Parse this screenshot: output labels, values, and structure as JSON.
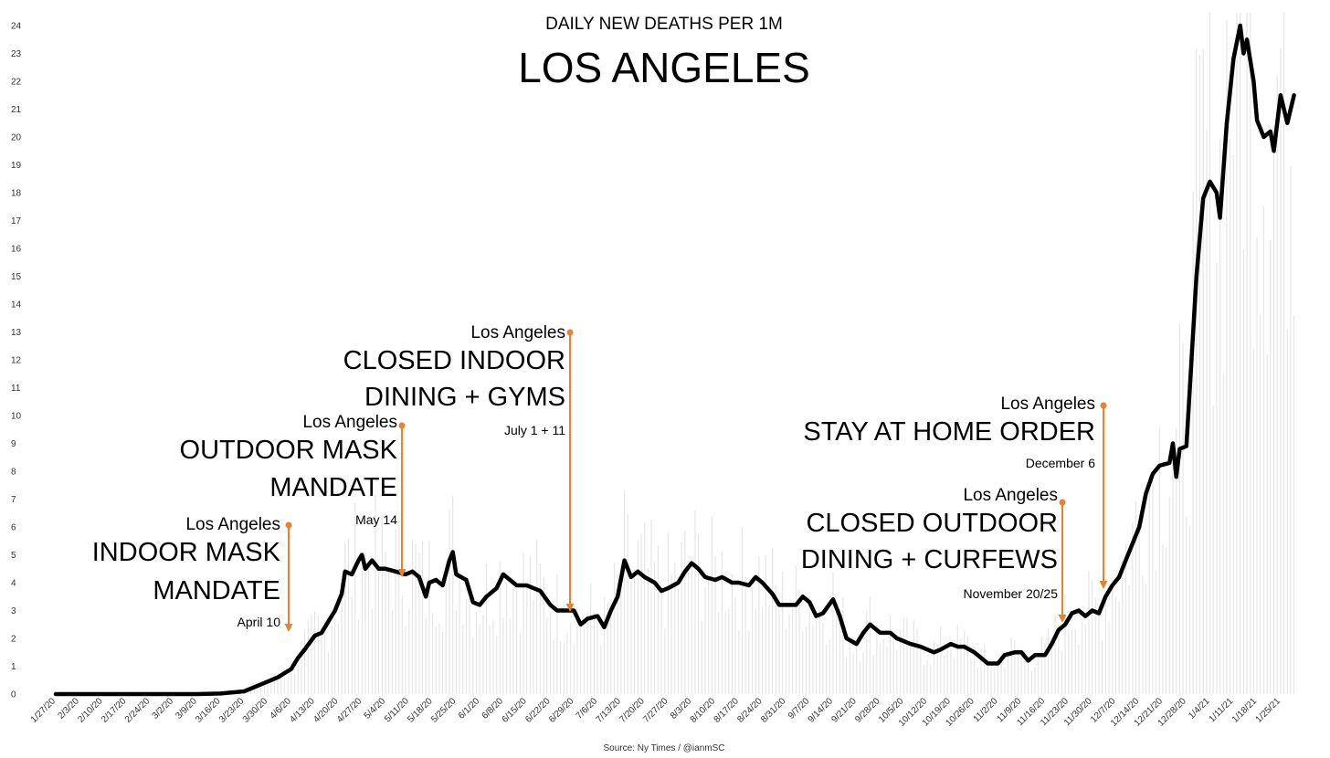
{
  "header": {
    "subtitle": "DAILY NEW DEATHS PER 1M",
    "title": "LOS ANGELES"
  },
  "source": "Source: Ny Times / @ianmSC",
  "colors": {
    "line": "#000000",
    "annotation": "#e8822c",
    "bars": "#e6e6e6"
  },
  "annotations": [
    {
      "place": "Los Angeles",
      "lines": [
        "INDOOR MASK",
        "MANDATE"
      ],
      "date": "April 10"
    },
    {
      "place": "Los Angeles",
      "lines": [
        "OUTDOOR MASK",
        "MANDATE"
      ],
      "date": "May 14"
    },
    {
      "place": "Los Angeles",
      "lines": [
        "CLOSED INDOOR",
        "DINING + GYMS"
      ],
      "date": "July 1 + 11"
    },
    {
      "place": "Los Angeles",
      "lines": [
        "CLOSED OUTDOOR",
        "DINING + CURFEWS"
      ],
      "date": "November 20/25"
    },
    {
      "place": "Los Angeles",
      "lines": [
        "STAY AT HOME ORDER"
      ],
      "date": "December 6"
    }
  ],
  "chart_data": {
    "type": "line",
    "ylim": [
      0,
      24
    ],
    "grid": false,
    "x_ticks": [
      "1/27/20",
      "2/3/20",
      "2/10/20",
      "2/17/20",
      "2/24/20",
      "3/2/20",
      "3/9/20",
      "3/16/20",
      "3/23/20",
      "3/30/20",
      "4/6/20",
      "4/13/20",
      "4/20/20",
      "4/27/20",
      "5/4/20",
      "5/11/20",
      "5/18/20",
      "5/25/20",
      "6/1/20",
      "6/8/20",
      "6/15/20",
      "6/22/20",
      "6/29/20",
      "7/6/20",
      "7/13/20",
      "7/20/20",
      "7/27/20",
      "8/3/20",
      "8/10/20",
      "8/17/20",
      "8/24/20",
      "8/31/20",
      "9/7/20",
      "9/14/20",
      "9/21/20",
      "9/28/20",
      "10/5/20",
      "10/12/20",
      "10/19/20",
      "10/26/20",
      "11/2/20",
      "11/9/20",
      "11/16/20",
      "11/23/20",
      "11/30/20",
      "12/7/20",
      "12/14/20",
      "12/21/20",
      "12/28/20",
      "1/4/21",
      "1/11/21",
      "1/18/21",
      "1/25/21"
    ],
    "y_ticks": [
      "0",
      "1",
      "2",
      "3",
      "4",
      "5",
      "6",
      "7",
      "8",
      "9",
      "10",
      "11",
      "12",
      "13",
      "14",
      "15",
      "16",
      "17",
      "18",
      "19",
      "20",
      "21",
      "22",
      "23",
      "24"
    ],
    "series": [
      {
        "points": [
          [
            "1/27/20",
            0
          ],
          [
            "2/3/20",
            0
          ],
          [
            "2/10/20",
            0
          ],
          [
            "2/17/20",
            0
          ],
          [
            "2/24/20",
            0
          ],
          [
            "3/2/20",
            0
          ],
          [
            "3/9/20",
            0
          ],
          [
            "3/16/20",
            0.02
          ],
          [
            "3/23/20",
            0.1
          ],
          [
            "3/27/20",
            0.3
          ],
          [
            "3/30/20",
            0.45
          ],
          [
            "4/2/20",
            0.6
          ],
          [
            "4/6/20",
            0.9
          ],
          [
            "4/8/20",
            1.3
          ],
          [
            "4/10/20",
            1.6
          ],
          [
            "4/13/20",
            2.1
          ],
          [
            "4/15/20",
            2.2
          ],
          [
            "4/17/20",
            2.6
          ],
          [
            "4/19/20",
            3.0
          ],
          [
            "4/21/20",
            3.6
          ],
          [
            "4/22/20",
            4.4
          ],
          [
            "4/24/20",
            4.3
          ],
          [
            "4/26/20",
            4.8
          ],
          [
            "4/27/20",
            5.0
          ],
          [
            "4/28/20",
            4.5
          ],
          [
            "4/30/20",
            4.8
          ],
          [
            "5/2/20",
            4.5
          ],
          [
            "5/4/20",
            4.5
          ],
          [
            "5/7/20",
            4.4
          ],
          [
            "5/10/20",
            4.3
          ],
          [
            "5/12/20",
            4.4
          ],
          [
            "5/14/20",
            4.2
          ],
          [
            "5/16/20",
            3.5
          ],
          [
            "5/17/20",
            4.0
          ],
          [
            "5/19/20",
            4.1
          ],
          [
            "5/21/20",
            3.9
          ],
          [
            "5/23/20",
            4.8
          ],
          [
            "5/24/20",
            5.1
          ],
          [
            "5/25/20",
            4.3
          ],
          [
            "5/28/20",
            4.1
          ],
          [
            "5/30/20",
            3.3
          ],
          [
            "6/1/20",
            3.2
          ],
          [
            "6/3/20",
            3.5
          ],
          [
            "6/6/20",
            3.8
          ],
          [
            "6/8/20",
            4.3
          ],
          [
            "6/10/20",
            4.1
          ],
          [
            "6/12/20",
            3.9
          ],
          [
            "6/15/20",
            3.9
          ],
          [
            "6/17/20",
            3.8
          ],
          [
            "6/19/20",
            3.7
          ],
          [
            "6/22/20",
            3.2
          ],
          [
            "6/24/20",
            3.0
          ],
          [
            "6/27/20",
            3.0
          ],
          [
            "6/29/20",
            3.0
          ],
          [
            "7/1/20",
            2.5
          ],
          [
            "7/3/20",
            2.7
          ],
          [
            "7/6/20",
            2.8
          ],
          [
            "7/8/20",
            2.4
          ],
          [
            "7/10/20",
            3.0
          ],
          [
            "7/12/20",
            3.5
          ],
          [
            "7/14/20",
            4.8
          ],
          [
            "7/16/20",
            4.2
          ],
          [
            "7/18/20",
            4.4
          ],
          [
            "7/20/20",
            4.2
          ],
          [
            "7/23/20",
            4.0
          ],
          [
            "7/25/20",
            3.7
          ],
          [
            "7/27/20",
            3.8
          ],
          [
            "7/30/20",
            4.0
          ],
          [
            "8/1/20",
            4.4
          ],
          [
            "8/3/20",
            4.7
          ],
          [
            "8/5/20",
            4.5
          ],
          [
            "8/7/20",
            4.2
          ],
          [
            "8/10/20",
            4.1
          ],
          [
            "8/12/20",
            4.2
          ],
          [
            "8/15/20",
            4.0
          ],
          [
            "8/17/20",
            4.0
          ],
          [
            "8/20/20",
            3.9
          ],
          [
            "8/22/20",
            4.2
          ],
          [
            "8/24/20",
            4.0
          ],
          [
            "8/27/20",
            3.6
          ],
          [
            "8/29/20",
            3.2
          ],
          [
            "8/31/20",
            3.2
          ],
          [
            "9/3/20",
            3.2
          ],
          [
            "9/5/20",
            3.5
          ],
          [
            "9/7/20",
            3.3
          ],
          [
            "9/9/20",
            2.8
          ],
          [
            "9/11/20",
            2.9
          ],
          [
            "9/14/20",
            3.4
          ],
          [
            "9/16/20",
            2.8
          ],
          [
            "9/18/20",
            2.0
          ],
          [
            "9/21/20",
            1.8
          ],
          [
            "9/23/20",
            2.2
          ],
          [
            "9/25/20",
            2.5
          ],
          [
            "9/28/20",
            2.2
          ],
          [
            "10/1/20",
            2.2
          ],
          [
            "10/3/20",
            2.0
          ],
          [
            "10/5/20",
            1.9
          ],
          [
            "10/7/20",
            1.8
          ],
          [
            "10/10/20",
            1.7
          ],
          [
            "10/12/20",
            1.6
          ],
          [
            "10/14/20",
            1.5
          ],
          [
            "10/16/20",
            1.6
          ],
          [
            "10/19/20",
            1.8
          ],
          [
            "10/21/20",
            1.7
          ],
          [
            "10/23/20",
            1.7
          ],
          [
            "10/26/20",
            1.5
          ],
          [
            "10/28/20",
            1.3
          ],
          [
            "10/30/20",
            1.1
          ],
          [
            "11/2/20",
            1.1
          ],
          [
            "11/4/20",
            1.4
          ],
          [
            "11/7/20",
            1.5
          ],
          [
            "11/9/20",
            1.5
          ],
          [
            "11/11/20",
            1.2
          ],
          [
            "11/13/20",
            1.4
          ],
          [
            "11/16/20",
            1.4
          ],
          [
            "11/18/20",
            1.8
          ],
          [
            "11/20/20",
            2.3
          ],
          [
            "11/22/20",
            2.5
          ],
          [
            "11/24/20",
            2.9
          ],
          [
            "11/26/20",
            3.0
          ],
          [
            "11/28/20",
            2.8
          ],
          [
            "11/30/20",
            3.0
          ],
          [
            "12/2/20",
            2.9
          ],
          [
            "12/4/20",
            3.5
          ],
          [
            "12/6/20",
            3.9
          ],
          [
            "12/8/20",
            4.2
          ],
          [
            "12/10/20",
            4.8
          ],
          [
            "12/12/20",
            5.4
          ],
          [
            "12/14/20",
            6.0
          ],
          [
            "12/16/20",
            7.2
          ],
          [
            "12/18/20",
            7.9
          ],
          [
            "12/20/20",
            8.2
          ],
          [
            "12/23/20",
            8.3
          ],
          [
            "12/24/20",
            9.0
          ],
          [
            "12/25/20",
            7.8
          ],
          [
            "12/26/20",
            8.8
          ],
          [
            "12/28/20",
            8.9
          ],
          [
            "12/31/20",
            15.0
          ],
          [
            "1/2/21",
            17.8
          ],
          [
            "1/4/21",
            18.4
          ],
          [
            "1/6/21",
            18.0
          ],
          [
            "1/7/21",
            17.1
          ],
          [
            "1/9/21",
            20.5
          ],
          [
            "1/11/21",
            22.8
          ],
          [
            "1/13/21",
            24.0
          ],
          [
            "1/14/21",
            23.0
          ],
          [
            "1/15/21",
            23.5
          ],
          [
            "1/17/21",
            22.0
          ],
          [
            "1/18/21",
            20.6
          ],
          [
            "1/20/21",
            20.0
          ],
          [
            "1/22/21",
            20.2
          ],
          [
            "1/23/21",
            19.5
          ],
          [
            "1/25/21",
            21.5
          ],
          [
            "1/27/21",
            20.5
          ],
          [
            "1/29/21",
            21.5
          ]
        ]
      }
    ]
  }
}
